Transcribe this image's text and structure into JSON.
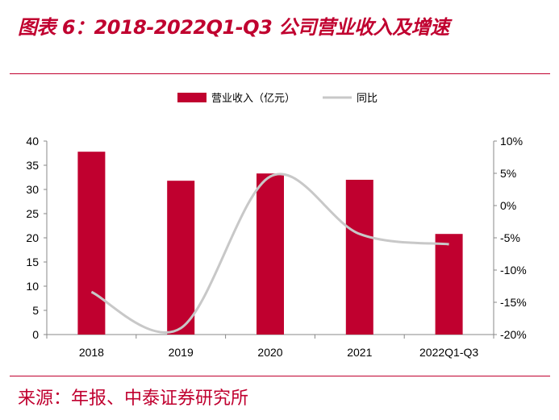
{
  "title": "图表 6：2018-2022Q1-Q3 公司营业收入及增速",
  "source": "来源：年报、中泰证券研究所",
  "chart_data": {
    "type": "bar+line",
    "categories": [
      "2018",
      "2019",
      "2020",
      "2021",
      "2022Q1-Q3"
    ],
    "series": [
      {
        "name": "营业收入（亿元）",
        "type": "bar",
        "axis": "left",
        "color": "#c0002f",
        "values": [
          37.8,
          31.8,
          33.3,
          32.0,
          20.8
        ]
      },
      {
        "name": "同比",
        "type": "line",
        "axis": "right",
        "color": "#c8c8c8",
        "values": [
          -13.4,
          -19.0,
          4.5,
          -4.4,
          -6.0
        ]
      }
    ],
    "left_axis": {
      "ylim": [
        0,
        40
      ],
      "ticks": [
        "0",
        "5",
        "10",
        "15",
        "20",
        "25",
        "30",
        "35",
        "40"
      ]
    },
    "right_axis": {
      "ylim": [
        -20,
        10
      ],
      "unit": "%",
      "ticks": [
        "-20%",
        "-15%",
        "-10%",
        "-5%",
        "0%",
        "5%",
        "10%"
      ]
    },
    "legend_placement": "top-center",
    "grid": false
  }
}
